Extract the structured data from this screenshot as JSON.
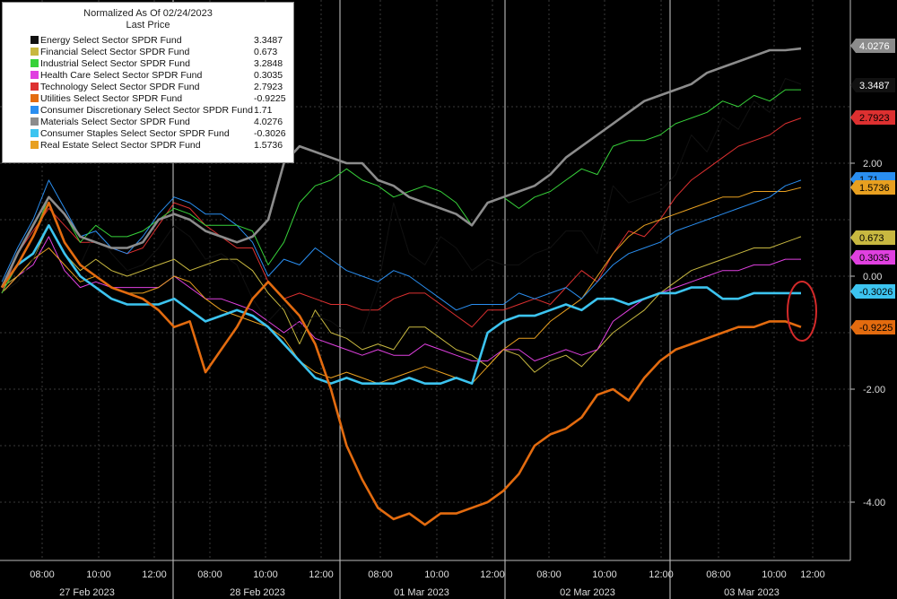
{
  "chart_data": {
    "type": "line",
    "title": "Normalized As Of 02/24/2023",
    "subtitle": "Last Price",
    "ylim": [
      -4.8,
      4.6
    ],
    "y_ticks": [
      2.0,
      0.0,
      -2.0,
      -4.0
    ],
    "y_tick_labels": [
      "2.00",
      "0.00",
      "-2.00",
      "-4.00"
    ],
    "x_time_ticks": [
      "08:00",
      "10:00",
      "12:00",
      "08:00",
      "10:00",
      "12:00",
      "08:00",
      "10:00",
      "12:00",
      "08:00",
      "10:00",
      "12:00",
      "08:00",
      "10:00",
      "12:00"
    ],
    "x_day_labels": [
      "27 Feb 2023",
      "28 Feb 2023",
      "01 Mar 2023",
      "02 Mar 2023",
      "03 Mar 2023"
    ],
    "grid": true,
    "legend_position": "top-left",
    "series": [
      {
        "name": "Energy Select Sector SPDR Fund",
        "label": "3.3487",
        "color": "#111111",
        "width": 1,
        "values": [
          -0.3,
          -0.1,
          0.3,
          1.0,
          0.6,
          0.2,
          0.8,
          0.4,
          0.1,
          0.2,
          0.5,
          0.9,
          0.7,
          0.3,
          0.4,
          0.2,
          -0.4,
          -0.8,
          -0.5,
          -0.9,
          -0.7,
          -0.8,
          -1.0,
          -1.0,
          -0.2,
          1.3,
          0.4,
          0.2,
          0.7,
          0.5,
          0.1,
          0.3,
          0.2,
          0.2,
          0.4,
          0.5,
          0.8,
          0.8,
          0.4,
          1.6,
          1.3,
          1.4,
          1.5,
          1.8,
          2.5,
          2.2,
          2.8,
          2.6,
          3.1,
          2.9,
          3.5,
          3.4
        ]
      },
      {
        "name": "Financial Select Sector SPDR Fund",
        "label": "0.673",
        "color": "#c8b840",
        "width": 1,
        "values": [
          -0.2,
          0.0,
          0.3,
          0.9,
          0.4,
          0.1,
          0.3,
          0.1,
          0.0,
          0.1,
          0.2,
          0.3,
          0.1,
          0.2,
          0.3,
          0.3,
          0.1,
          -0.3,
          -0.6,
          -1.2,
          -0.6,
          -1.0,
          -1.1,
          -1.3,
          -1.2,
          -1.3,
          -0.9,
          -0.9,
          -1.1,
          -1.3,
          -1.4,
          -1.6,
          -1.3,
          -1.4,
          -1.7,
          -1.5,
          -1.4,
          -1.6,
          -1.3,
          -1.0,
          -0.8,
          -0.6,
          -0.3,
          -0.1,
          0.1,
          0.2,
          0.3,
          0.4,
          0.5,
          0.5,
          0.6,
          0.7
        ]
      },
      {
        "name": "Industrial Select Sector SPDR Fund",
        "label": "3.2848",
        "color": "#37d23a",
        "width": 1,
        "values": [
          -0.3,
          0.2,
          0.7,
          1.4,
          1.1,
          0.6,
          0.9,
          0.7,
          0.7,
          0.8,
          1.0,
          1.2,
          1.1,
          0.9,
          0.9,
          0.9,
          0.8,
          0.2,
          0.6,
          1.3,
          1.6,
          1.7,
          1.9,
          1.7,
          1.6,
          1.4,
          1.5,
          1.6,
          1.5,
          1.3,
          0.9,
          1.3,
          1.4,
          1.2,
          1.4,
          1.5,
          1.7,
          1.9,
          1.8,
          2.3,
          2.4,
          2.4,
          2.5,
          2.7,
          2.8,
          2.9,
          3.1,
          3.0,
          3.2,
          3.1,
          3.3,
          3.3
        ]
      },
      {
        "name": "Health Care Select Sector SPDR Fund",
        "label": "0.3035",
        "color": "#e040e0",
        "width": 1,
        "values": [
          -0.3,
          0.0,
          0.2,
          0.7,
          0.1,
          -0.2,
          -0.1,
          -0.2,
          -0.2,
          -0.2,
          -0.2,
          0.0,
          -0.2,
          -0.4,
          -0.4,
          -0.5,
          -0.6,
          -0.8,
          -1.0,
          -0.8,
          -1.1,
          -1.2,
          -1.3,
          -1.4,
          -1.3,
          -1.4,
          -1.4,
          -1.2,
          -1.3,
          -1.4,
          -1.5,
          -1.5,
          -1.3,
          -1.3,
          -1.5,
          -1.4,
          -1.3,
          -1.4,
          -1.3,
          -0.8,
          -0.6,
          -0.4,
          -0.3,
          -0.2,
          -0.1,
          0.0,
          0.1,
          0.1,
          0.2,
          0.2,
          0.3,
          0.3
        ]
      },
      {
        "name": "Technology Select Sector SPDR Fund",
        "label": "2.7923",
        "color": "#dd3030",
        "width": 1,
        "values": [
          -0.3,
          0.4,
          0.8,
          1.2,
          0.9,
          0.6,
          0.6,
          0.5,
          0.4,
          0.5,
          0.9,
          1.3,
          1.2,
          0.9,
          0.7,
          0.5,
          0.5,
          -0.1,
          -0.4,
          -0.3,
          -0.4,
          -0.5,
          -0.5,
          -0.6,
          -0.6,
          -0.4,
          -0.3,
          -0.3,
          -0.5,
          -0.7,
          -0.9,
          -0.6,
          -0.6,
          -0.5,
          -0.4,
          -0.5,
          -0.2,
          0.1,
          -0.1,
          0.4,
          0.8,
          0.7,
          1.0,
          1.4,
          1.7,
          1.9,
          2.1,
          2.3,
          2.4,
          2.5,
          2.7,
          2.8
        ]
      },
      {
        "name": "Utilities Select Sector SPDR Fund",
        "label": "-0.9225",
        "color": "#e36b0f",
        "width": 2.6,
        "values": [
          -0.2,
          0.2,
          0.7,
          1.3,
          0.6,
          0.2,
          0.0,
          -0.2,
          -0.3,
          -0.4,
          -0.6,
          -0.9,
          -0.8,
          -1.7,
          -1.3,
          -0.9,
          -0.4,
          -0.1,
          -0.4,
          -0.7,
          -1.2,
          -2.0,
          -3.0,
          -3.6,
          -4.1,
          -4.3,
          -4.2,
          -4.4,
          -4.2,
          -4.2,
          -4.1,
          -4.0,
          -3.8,
          -3.5,
          -3.0,
          -2.8,
          -2.7,
          -2.5,
          -2.1,
          -2.0,
          -2.2,
          -1.8,
          -1.5,
          -1.3,
          -1.2,
          -1.1,
          -1.0,
          -0.9,
          -0.9,
          -0.8,
          -0.8,
          -0.9
        ]
      },
      {
        "name": "Consumer Discretionary Select Sector SPDR Fund",
        "label": "1.71",
        "color": "#2a8ef0",
        "width": 1,
        "values": [
          -0.1,
          0.5,
          1.0,
          1.7,
          1.2,
          0.7,
          0.8,
          0.5,
          0.4,
          0.7,
          1.1,
          1.4,
          1.3,
          1.1,
          1.1,
          0.9,
          0.6,
          0.0,
          0.3,
          0.2,
          0.5,
          0.3,
          0.1,
          0.0,
          -0.1,
          0.1,
          0.0,
          -0.2,
          -0.4,
          -0.6,
          -0.5,
          -0.5,
          -0.5,
          -0.3,
          -0.4,
          -0.3,
          -0.2,
          -0.4,
          -0.1,
          0.2,
          0.4,
          0.5,
          0.6,
          0.8,
          0.9,
          1.0,
          1.1,
          1.2,
          1.3,
          1.4,
          1.6,
          1.7
        ]
      },
      {
        "name": "Materials Select Sector SPDR Fund",
        "label": "4.0276",
        "color": "#8c8c8c",
        "width": 2.6,
        "values": [
          -0.2,
          0.4,
          0.9,
          1.4,
          1.1,
          0.7,
          0.6,
          0.5,
          0.5,
          0.6,
          1.0,
          1.1,
          1.0,
          0.8,
          0.7,
          0.6,
          0.7,
          1.0,
          2.0,
          2.3,
          2.2,
          2.1,
          2.0,
          2.0,
          1.7,
          1.6,
          1.4,
          1.3,
          1.2,
          1.1,
          0.9,
          1.3,
          1.4,
          1.5,
          1.6,
          1.8,
          2.1,
          2.3,
          2.5,
          2.7,
          2.9,
          3.1,
          3.2,
          3.3,
          3.4,
          3.6,
          3.7,
          3.8,
          3.9,
          4.0,
          4.0,
          4.03
        ]
      },
      {
        "name": "Consumer Staples Select Sector SPDR Fund",
        "label": "-0.3026",
        "color": "#3cc4f0",
        "width": 2.6,
        "values": [
          -0.2,
          0.2,
          0.4,
          0.9,
          0.4,
          0.0,
          -0.2,
          -0.4,
          -0.5,
          -0.5,
          -0.5,
          -0.4,
          -0.6,
          -0.8,
          -0.7,
          -0.6,
          -0.7,
          -0.9,
          -1.2,
          -1.5,
          -1.8,
          -1.9,
          -1.8,
          -1.9,
          -1.9,
          -1.9,
          -1.8,
          -1.9,
          -1.9,
          -1.8,
          -1.9,
          -1.0,
          -0.8,
          -0.7,
          -0.7,
          -0.6,
          -0.5,
          -0.6,
          -0.4,
          -0.4,
          -0.5,
          -0.4,
          -0.3,
          -0.3,
          -0.2,
          -0.2,
          -0.4,
          -0.4,
          -0.3,
          -0.3,
          -0.3,
          -0.3
        ]
      },
      {
        "name": "Real Estate Select Sector SPDR Fund",
        "label": "1.5736",
        "color": "#e8a020",
        "width": 1,
        "values": [
          -0.3,
          0.0,
          0.3,
          0.5,
          0.2,
          -0.1,
          0.0,
          -0.2,
          -0.3,
          -0.3,
          -0.2,
          0.0,
          -0.1,
          -0.4,
          -0.6,
          -0.7,
          -0.8,
          -0.9,
          -1.1,
          -1.5,
          -1.7,
          -1.8,
          -1.7,
          -1.8,
          -1.9,
          -1.8,
          -1.7,
          -1.6,
          -1.7,
          -1.8,
          -1.9,
          -1.6,
          -1.3,
          -1.1,
          -1.1,
          -0.8,
          -0.6,
          -0.4,
          0.0,
          0.4,
          0.7,
          0.9,
          1.0,
          1.1,
          1.2,
          1.3,
          1.4,
          1.4,
          1.5,
          1.5,
          1.5,
          1.57
        ]
      }
    ]
  },
  "legend": {
    "title": "Normalized As Of 02/24/2023",
    "subtitle": "Last Price"
  }
}
